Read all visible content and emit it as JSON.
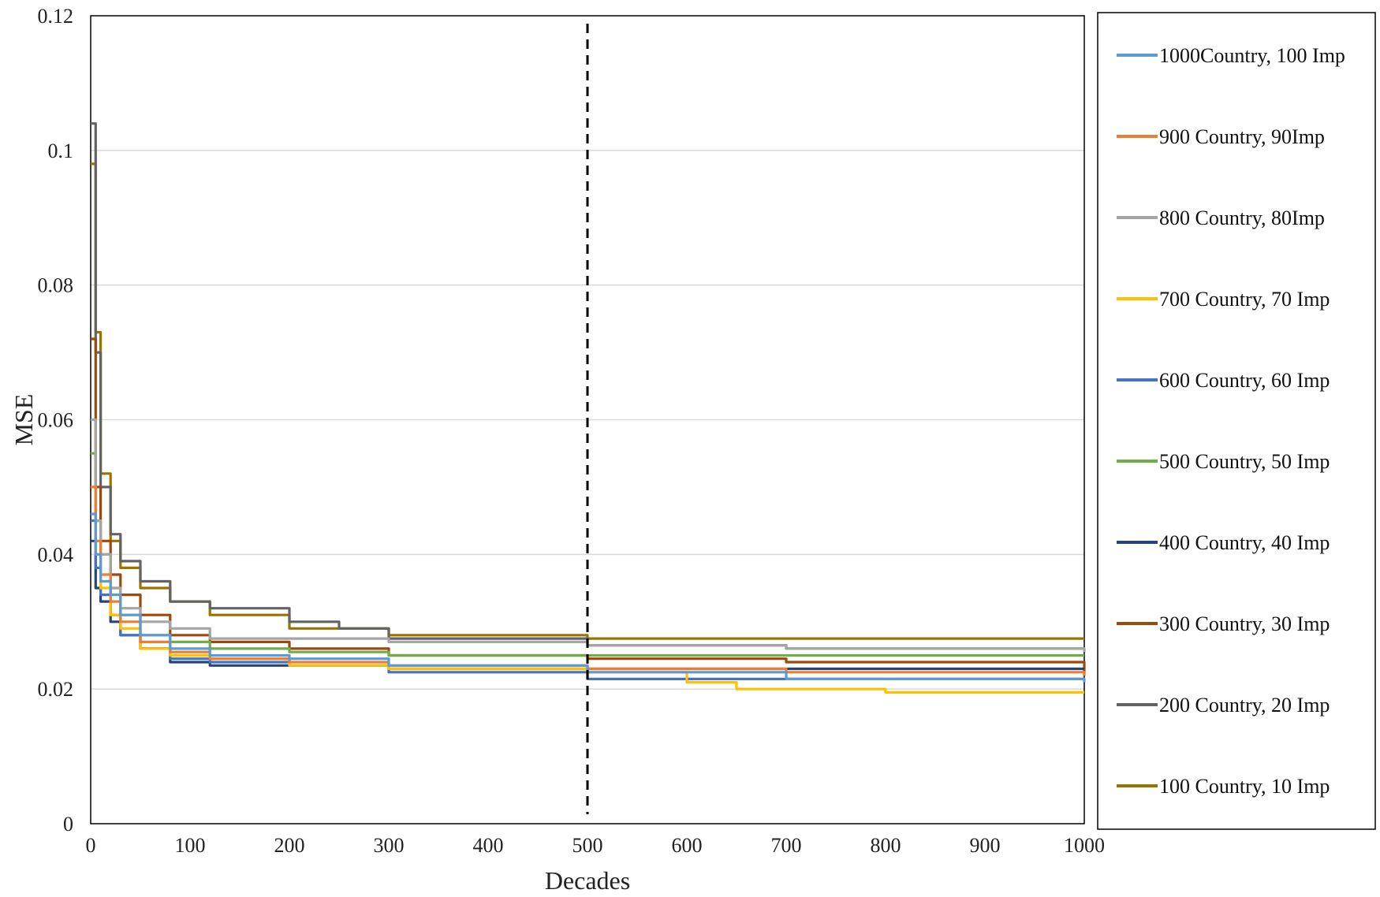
{
  "chart_data": {
    "type": "line",
    "title": "",
    "xlabel": "Decades",
    "ylabel": "MSE",
    "xlim": [
      0,
      1000
    ],
    "ylim": [
      0,
      0.12
    ],
    "x_ticks": [
      "0",
      "100",
      "200",
      "300",
      "400",
      "500",
      "600",
      "700",
      "800",
      "900",
      "1000"
    ],
    "x_tick_values": [
      0,
      100,
      200,
      300,
      400,
      500,
      600,
      700,
      800,
      900,
      1000
    ],
    "y_ticks": [
      "0",
      "0.02",
      "0.04",
      "0.06",
      "0.08",
      "0.1",
      "0.12"
    ],
    "y_tick_values": [
      0,
      0.02,
      0.04,
      0.06,
      0.08,
      0.1,
      0.12
    ],
    "grid": true,
    "legend_position": "right",
    "reference_line": {
      "x": 500,
      "style": "dashed"
    },
    "series": [
      {
        "name": "1000Country, 100 Imp",
        "color": "#5B9BD5",
        "x": [
          0,
          5,
          10,
          20,
          30,
          50,
          80,
          120,
          200,
          300,
          500,
          700,
          1000
        ],
        "y": [
          0.046,
          0.04,
          0.036,
          0.034,
          0.031,
          0.028,
          0.026,
          0.025,
          0.0245,
          0.0235,
          0.0225,
          0.0215,
          0.021
        ]
      },
      {
        "name": "900 Country, 90Imp",
        "color": "#ED7D31",
        "x": [
          0,
          5,
          10,
          20,
          30,
          50,
          80,
          120,
          200,
          300,
          500,
          700,
          1000
        ],
        "y": [
          0.05,
          0.042,
          0.037,
          0.033,
          0.03,
          0.027,
          0.0255,
          0.0245,
          0.024,
          0.0235,
          0.023,
          0.0225,
          0.022
        ]
      },
      {
        "name": "800 Country, 80Imp",
        "color": "#A5A5A5",
        "x": [
          0,
          5,
          10,
          20,
          30,
          50,
          80,
          120,
          200,
          300,
          500,
          700,
          1000
        ],
        "y": [
          0.06,
          0.045,
          0.04,
          0.035,
          0.032,
          0.03,
          0.029,
          0.0275,
          0.0275,
          0.027,
          0.0265,
          0.026,
          0.0255
        ]
      },
      {
        "name": "700 Country, 70 Imp",
        "color": "#FFC000",
        "x": [
          0,
          5,
          10,
          20,
          30,
          50,
          80,
          120,
          200,
          300,
          500,
          600,
          650,
          800,
          1000
        ],
        "y": [
          0.05,
          0.04,
          0.035,
          0.031,
          0.029,
          0.026,
          0.025,
          0.0245,
          0.0235,
          0.023,
          0.0225,
          0.021,
          0.02,
          0.0195,
          0.0195
        ]
      },
      {
        "name": "600 Country, 60 Imp",
        "color": "#4472C4",
        "x": [
          0,
          5,
          10,
          20,
          30,
          50,
          80,
          120,
          200,
          300,
          500,
          700,
          1000
        ],
        "y": [
          0.045,
          0.038,
          0.034,
          0.031,
          0.028,
          0.026,
          0.0245,
          0.024,
          0.0235,
          0.0225,
          0.0215,
          0.0215,
          0.0215
        ]
      },
      {
        "name": "500 Country, 50 Imp",
        "color": "#70AD47",
        "x": [
          0,
          5,
          10,
          20,
          30,
          50,
          80,
          120,
          200,
          300,
          500,
          700,
          1000
        ],
        "y": [
          0.055,
          0.045,
          0.04,
          0.035,
          0.031,
          0.028,
          0.027,
          0.026,
          0.0255,
          0.025,
          0.025,
          0.025,
          0.025
        ]
      },
      {
        "name": "400 Country, 40 Imp",
        "color": "#264478",
        "x": [
          0,
          5,
          10,
          20,
          30,
          50,
          80,
          120,
          200,
          300,
          500,
          700,
          1000
        ],
        "y": [
          0.042,
          0.035,
          0.033,
          0.03,
          0.028,
          0.026,
          0.024,
          0.0235,
          0.0235,
          0.023,
          0.023,
          0.023,
          0.023
        ]
      },
      {
        "name": "300 Country, 30 Imp",
        "color": "#9E480E",
        "x": [
          0,
          5,
          10,
          20,
          30,
          50,
          80,
          120,
          200,
          300,
          500,
          700,
          1000
        ],
        "y": [
          0.072,
          0.05,
          0.042,
          0.037,
          0.034,
          0.031,
          0.028,
          0.027,
          0.026,
          0.025,
          0.0245,
          0.024,
          0.022
        ]
      },
      {
        "name": "200 Country, 20 Imp",
        "color": "#636363",
        "x": [
          0,
          5,
          10,
          20,
          30,
          50,
          80,
          120,
          200,
          250,
          300,
          500,
          700,
          1000
        ],
        "y": [
          0.104,
          0.07,
          0.05,
          0.043,
          0.039,
          0.036,
          0.033,
          0.032,
          0.03,
          0.029,
          0.0275,
          0.0265,
          0.026,
          0.026
        ]
      },
      {
        "name": "100 Country, 10 Imp",
        "color": "#997300",
        "x": [
          0,
          5,
          10,
          20,
          30,
          50,
          80,
          120,
          200,
          300,
          500,
          700,
          1000
        ],
        "y": [
          0.098,
          0.073,
          0.052,
          0.042,
          0.038,
          0.035,
          0.033,
          0.031,
          0.029,
          0.028,
          0.0275,
          0.0275,
          0.0275
        ]
      }
    ]
  }
}
